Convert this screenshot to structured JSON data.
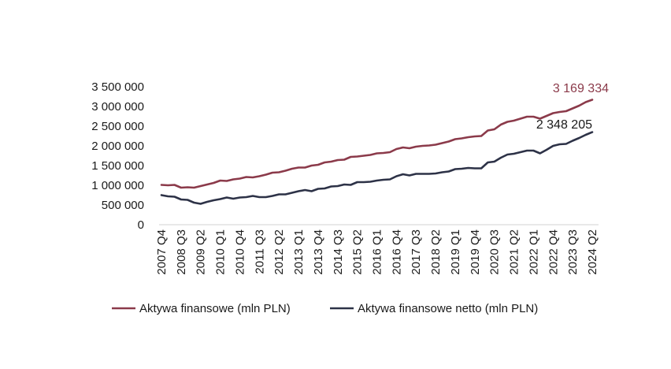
{
  "chart_data": {
    "type": "line",
    "title": "",
    "xlabel": "",
    "ylabel": "",
    "ylim": [
      0,
      3500000
    ],
    "yticks": [
      0,
      500000,
      1000000,
      1500000,
      2000000,
      2500000,
      3000000,
      3500000
    ],
    "ytick_labels": [
      "0",
      "500 000",
      "1 000 000",
      "1 500 000",
      "2 000 000",
      "2 500 000",
      "3 000 000",
      "3 500 000"
    ],
    "grid": false,
    "legend_position": "bottom",
    "categories": [
      "2007 Q4",
      "2008 Q1",
      "2008 Q2",
      "2008 Q3",
      "2008 Q4",
      "2009 Q1",
      "2009 Q2",
      "2009 Q3",
      "2009 Q4",
      "2010 Q1",
      "2010 Q2",
      "2010 Q3",
      "2010 Q4",
      "2011 Q1",
      "2011 Q2",
      "2011 Q3",
      "2011 Q4",
      "2012 Q1",
      "2012 Q2",
      "2012 Q3",
      "2012 Q4",
      "2013 Q1",
      "2013 Q2",
      "2013 Q3",
      "2013 Q4",
      "2014 Q1",
      "2014 Q2",
      "2014 Q3",
      "2014 Q4",
      "2015 Q1",
      "2015 Q2",
      "2015 Q3",
      "2015 Q4",
      "2016 Q1",
      "2016 Q2",
      "2016 Q3",
      "2016 Q4",
      "2017 Q1",
      "2017 Q2",
      "2017 Q3",
      "2017 Q4",
      "2018 Q1",
      "2018 Q2",
      "2018 Q3",
      "2018 Q4",
      "2019 Q1",
      "2019 Q2",
      "2019 Q3",
      "2019 Q4",
      "2020 Q1",
      "2020 Q2",
      "2020 Q3",
      "2020 Q4",
      "2021 Q1",
      "2021 Q2",
      "2021 Q3",
      "2021 Q4",
      "2022 Q1",
      "2022 Q2",
      "2022 Q3",
      "2022 Q4",
      "2023 Q1",
      "2023 Q2",
      "2023 Q3",
      "2023 Q4",
      "2024 Q1",
      "2024 Q2"
    ],
    "xtick_labels": [
      "2007 Q4",
      "2008 Q3",
      "2009 Q2",
      "2010 Q1",
      "2010 Q4",
      "2011 Q3",
      "2012 Q2",
      "2013 Q1",
      "2013 Q4",
      "2014 Q3",
      "2015 Q2",
      "2016 Q1",
      "2016 Q4",
      "2017 Q3",
      "2018 Q2",
      "2019 Q1",
      "2019 Q4",
      "2020 Q3",
      "2021 Q2",
      "2022 Q1",
      "2022 Q4",
      "2023 Q3",
      "2024 Q2"
    ],
    "series": [
      {
        "name": "Aktywa finansowe (mln PLN)",
        "color": "#8b3a4a",
        "values": [
          1010000,
          1000000,
          1010000,
          940000,
          950000,
          940000,
          980000,
          1020000,
          1060000,
          1120000,
          1110000,
          1150000,
          1170000,
          1210000,
          1200000,
          1230000,
          1270000,
          1320000,
          1330000,
          1370000,
          1420000,
          1450000,
          1450000,
          1500000,
          1520000,
          1580000,
          1600000,
          1640000,
          1650000,
          1720000,
          1730000,
          1750000,
          1770000,
          1810000,
          1820000,
          1840000,
          1920000,
          1960000,
          1940000,
          1980000,
          2000000,
          2010000,
          2030000,
          2070000,
          2110000,
          2170000,
          2190000,
          2220000,
          2240000,
          2250000,
          2390000,
          2420000,
          2540000,
          2610000,
          2640000,
          2690000,
          2740000,
          2740000,
          2690000,
          2760000,
          2830000,
          2860000,
          2880000,
          2950000,
          3020000,
          3110000,
          3169334
        ],
        "end_label": "3 169 334"
      },
      {
        "name": "Aktywa finansowe netto (mln PLN)",
        "color": "#2d3247",
        "values": [
          750000,
          720000,
          710000,
          640000,
          630000,
          560000,
          530000,
          580000,
          620000,
          650000,
          690000,
          660000,
          690000,
          700000,
          730000,
          700000,
          700000,
          730000,
          770000,
          770000,
          810000,
          850000,
          880000,
          850000,
          910000,
          920000,
          970000,
          980000,
          1020000,
          1010000,
          1080000,
          1080000,
          1090000,
          1120000,
          1140000,
          1150000,
          1230000,
          1280000,
          1250000,
          1290000,
          1290000,
          1290000,
          1300000,
          1330000,
          1350000,
          1410000,
          1420000,
          1440000,
          1430000,
          1430000,
          1580000,
          1600000,
          1700000,
          1780000,
          1800000,
          1840000,
          1880000,
          1880000,
          1810000,
          1900000,
          2000000,
          2040000,
          2050000,
          2130000,
          2200000,
          2280000,
          2348205
        ],
        "end_label": "2 348 205"
      }
    ]
  }
}
